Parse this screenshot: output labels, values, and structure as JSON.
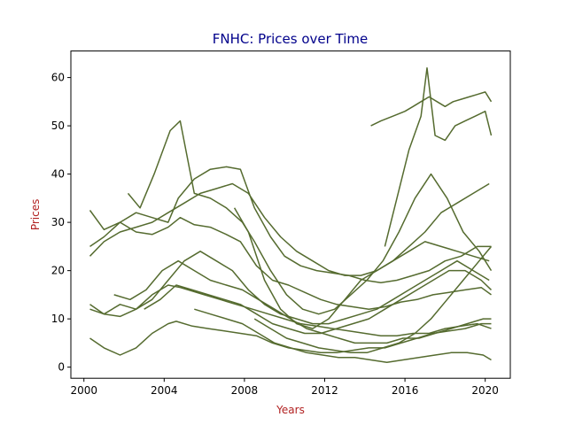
{
  "chart_data": {
    "type": "line",
    "title": "FNHC: Prices over Time",
    "xlabel": "Years",
    "ylabel": "Prices",
    "title_color": "#00008b",
    "label_color": "#b22222",
    "line_color": "#556b2f",
    "xlim": [
      1999.35,
      2021.25
    ],
    "ylim": [
      -2.3,
      65.5
    ],
    "x_ticks": [
      2000,
      2004,
      2008,
      2012,
      2016,
      2020
    ],
    "y_ticks": [
      0,
      10,
      20,
      30,
      40,
      50,
      60
    ],
    "grid": false,
    "legend": "none",
    "series": [
      {
        "x": [
          2000.3,
          2001,
          2001.8,
          2002.6,
          2003.4,
          2004.2,
          2004.8,
          2005.5,
          2006.3,
          2007.1,
          2007.8,
          2008.6,
          2009.4,
          2010.2,
          2011,
          2011.8,
          2012.6,
          2013.4,
          2014.2,
          2015,
          2015.8,
          2016.6,
          2017.4,
          2018.2,
          2019,
          2019.8,
          2020.3
        ],
        "y": [
          32.5,
          28.5,
          30,
          28,
          27.5,
          29,
          31,
          29.5,
          29,
          27.5,
          26,
          21,
          18,
          17,
          15.5,
          14,
          13,
          12.5,
          12,
          12.5,
          13.5,
          14,
          15,
          15.5,
          16,
          16.5,
          15
        ]
      },
      {
        "x": [
          2000.3,
          2001,
          2001.8,
          2002.6,
          2003.4,
          2004.2,
          2004.7,
          2005.5,
          2006.3,
          2007.1,
          2007.8,
          2008.5,
          2009.3,
          2010,
          2010.8,
          2011.6,
          2012.4,
          2013.2,
          2014,
          2014.8,
          2015.6,
          2016.4,
          2017.2,
          2018,
          2018.8,
          2019.6,
          2020.3
        ],
        "y": [
          25,
          27,
          30,
          32,
          31,
          30,
          35,
          39,
          41,
          41.5,
          41,
          33,
          27,
          23,
          21,
          20,
          19.5,
          19,
          18,
          17.5,
          18,
          19,
          20,
          22,
          23,
          25,
          25
        ]
      },
      {
        "x": [
          2000.3,
          2001,
          2001.8,
          2002.6,
          2003.4,
          2004.2,
          2004.8,
          2005.2,
          2006,
          2006.8,
          2007.6,
          2008.4,
          2009.2,
          2010,
          2010.8,
          2011.6,
          2012.4,
          2013.2,
          2014,
          2014.8,
          2015.6,
          2016.4,
          2017.2,
          2018,
          2018.8,
          2019.6,
          2020.3
        ],
        "y": [
          13,
          11,
          10.5,
          12,
          15,
          17,
          16.5,
          16,
          15,
          14,
          13,
          12,
          11,
          10,
          9,
          8.5,
          8,
          7.5,
          7,
          6.5,
          6.5,
          7,
          7,
          8,
          8.5,
          9,
          8
        ]
      },
      {
        "x": [
          2000.3,
          2001,
          2001.8,
          2002.6,
          2003.4,
          2004.2,
          2004.6,
          2005.4,
          2006.2,
          2007,
          2007.8,
          2008.6,
          2009.4,
          2010.2,
          2011,
          2011.8,
          2012.6,
          2013.4,
          2014.2,
          2015,
          2015.8,
          2016.6,
          2017.4,
          2018.2,
          2019,
          2019.8,
          2020.3
        ],
        "y": [
          6,
          4,
          2.5,
          4,
          7,
          9,
          9.5,
          8.5,
          8,
          7.5,
          7,
          6.5,
          5,
          4,
          3.5,
          3,
          3,
          3.5,
          4,
          4,
          5,
          6,
          7,
          7.5,
          8,
          9,
          9
        ]
      },
      {
        "x": [
          2000.3,
          2001,
          2001.8,
          2002.6,
          2003.4,
          2004.2,
          2005,
          2005.8,
          2006.6,
          2007.4,
          2008.2,
          2009,
          2009.8,
          2010.6,
          2011.4,
          2012.2,
          2013,
          2013.8,
          2014.6,
          2015.4,
          2016.2,
          2017,
          2017.8,
          2018.6,
          2019.4,
          2020.2
        ],
        "y": [
          12,
          11,
          13,
          12,
          14,
          18,
          22,
          24,
          22,
          20,
          16,
          13,
          11,
          10,
          9,
          9,
          10,
          11,
          12,
          14,
          16,
          18,
          20,
          22,
          20,
          18
        ]
      },
      {
        "x": [
          2000.3,
          2001,
          2001.8,
          2002.6,
          2003.4,
          2004.2,
          2005,
          2005.8,
          2006.6,
          2007.4,
          2008.2,
          2009,
          2009.8,
          2010.6,
          2011.4,
          2012.2,
          2013,
          2013.8,
          2014.6,
          2015.4,
          2016.2,
          2017,
          2017.8,
          2018.6,
          2019.4,
          2020.2
        ],
        "y": [
          23,
          26,
          28,
          29,
          30,
          32,
          34,
          36,
          37,
          38,
          36,
          31,
          27,
          24,
          22,
          20,
          19,
          19,
          20,
          22,
          25,
          28,
          32,
          34,
          36,
          38
        ]
      },
      {
        "x": [
          2002.2,
          2002.8,
          2003.5,
          2004.3,
          2004.8,
          2005.5,
          2006.3,
          2007.1,
          2007.9,
          2008.5,
          2009.3,
          2010.1,
          2010.9,
          2011.7,
          2012.5,
          2013.3,
          2014.1,
          2014.9,
          2015.7,
          2016.5,
          2017.3,
          2018.1,
          2018.9,
          2019.7,
          2020.3
        ],
        "y": [
          36,
          33,
          40,
          49,
          51,
          36,
          35,
          33,
          30,
          26,
          20,
          15,
          12,
          11,
          12,
          15,
          18,
          22,
          28,
          35,
          40,
          35,
          28,
          24,
          20
        ]
      },
      {
        "x": [
          2001.5,
          2002.3,
          2003.1,
          2003.9,
          2004.7,
          2005.5,
          2006.3,
          2007.1,
          2007.9,
          2008.7,
          2009.5,
          2010.3,
          2011.1,
          2011.9,
          2012.7,
          2013.5,
          2014.3,
          2015.1,
          2015.9,
          2016.7,
          2017.5,
          2018.3,
          2019.1,
          2019.9,
          2020.3
        ],
        "y": [
          15,
          14,
          16,
          20,
          22,
          20,
          18,
          17,
          16,
          14,
          12,
          10,
          8,
          7,
          6,
          5,
          5,
          5,
          6,
          6,
          7,
          8,
          9,
          10,
          10
        ]
      },
      {
        "x": [
          2005.5,
          2006.3,
          2007.1,
          2007.9,
          2008.7,
          2009.5,
          2010.3,
          2011.1,
          2011.9,
          2012.7,
          2013.5,
          2014.3,
          2015.1,
          2015.9,
          2016.7,
          2017.5,
          2018.3,
          2019.1,
          2019.9,
          2020.3
        ],
        "y": [
          12,
          11,
          10,
          9,
          7,
          5,
          4,
          3,
          2.5,
          2,
          2,
          1.5,
          1,
          1.5,
          2,
          2.5,
          3,
          3,
          2.5,
          1.5
        ]
      },
      {
        "x": [
          2007.5,
          2008.2,
          2009,
          2009.8,
          2010.6,
          2011.4,
          2012.2,
          2013,
          2013.8,
          2014.6,
          2015.4,
          2016.2,
          2017,
          2017.8,
          2018.6,
          2019.4,
          2020.2
        ],
        "y": [
          33,
          28,
          18,
          12,
          9,
          8,
          10,
          14,
          18,
          20,
          22,
          24,
          26,
          25,
          24,
          23,
          22
        ]
      },
      {
        "x": [
          2014.3,
          2014.8,
          2015.4,
          2016,
          2016.4,
          2016.8,
          2017.2,
          2017.6,
          2018,
          2018.4,
          2018.8,
          2019.2,
          2019.6,
          2020,
          2020.3
        ],
        "y": [
          50,
          51,
          52,
          53,
          54,
          55,
          56,
          55,
          54,
          55,
          55.5,
          56,
          56.5,
          57,
          55
        ]
      },
      {
        "x": [
          2015,
          2015.6,
          2016.2,
          2016.8,
          2017.1,
          2017.5,
          2018,
          2018.5,
          2019,
          2019.5,
          2020,
          2020.3
        ],
        "y": [
          25,
          35,
          45,
          52,
          62,
          48,
          47,
          50,
          51,
          52,
          53,
          48
        ]
      },
      {
        "x": [
          2008.5,
          2009.3,
          2010.1,
          2010.9,
          2011.7,
          2012.5,
          2013.3,
          2014.1,
          2014.9,
          2015.7,
          2016.5,
          2017.3,
          2018.1,
          2018.9,
          2019.7,
          2020.3
        ],
        "y": [
          10,
          8,
          6,
          5,
          4,
          3.5,
          3,
          3,
          4,
          5,
          7,
          10,
          14,
          18,
          22,
          25
        ]
      },
      {
        "x": [
          2003,
          2003.8,
          2004.6,
          2005.4,
          2006.2,
          2007,
          2007.8,
          2008.6,
          2009.4,
          2010.2,
          2011,
          2011.8,
          2012.6,
          2013.4,
          2014.2,
          2015,
          2015.8,
          2016.6,
          2017.4,
          2018.2,
          2019,
          2019.8,
          2020.3
        ],
        "y": [
          12,
          14,
          17,
          16,
          15,
          14,
          13,
          11,
          9,
          8,
          7,
          7,
          8,
          9,
          10,
          12,
          14,
          16,
          18,
          20,
          20,
          18,
          16
        ]
      }
    ]
  }
}
